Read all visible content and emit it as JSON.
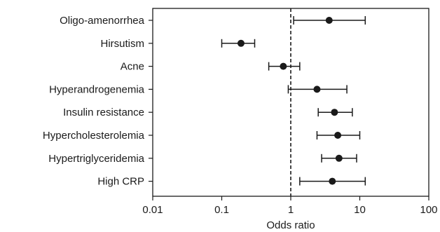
{
  "chart_data": {
    "type": "scatter",
    "subtype": "forest-plot",
    "xlabel": "Odds ratio",
    "xscale": "log",
    "xlim": [
      0.01,
      100
    ],
    "xticks": [
      0.01,
      0.1,
      1,
      10,
      100
    ],
    "xtick_labels": [
      "0.01",
      "0.1",
      "1",
      "10",
      "100"
    ],
    "reference_line": 1,
    "categories": [
      "Oligo-amenorrhea",
      "Hirsutism",
      "Acne",
      "Hyperandrogenemia",
      "Insulin resistance",
      "Hypercholesterolemia",
      "Hypertriglyceridemia",
      "High CRP"
    ],
    "estimates": [
      3.6,
      0.19,
      0.78,
      2.4,
      4.3,
      4.8,
      5.0,
      4.0
    ],
    "ci_lower": [
      1.1,
      0.1,
      0.48,
      0.92,
      2.5,
      2.4,
      2.8,
      1.35
    ],
    "ci_upper": [
      12.0,
      0.3,
      1.35,
      6.5,
      7.8,
      10.0,
      9.0,
      12.0
    ],
    "grid": false
  }
}
